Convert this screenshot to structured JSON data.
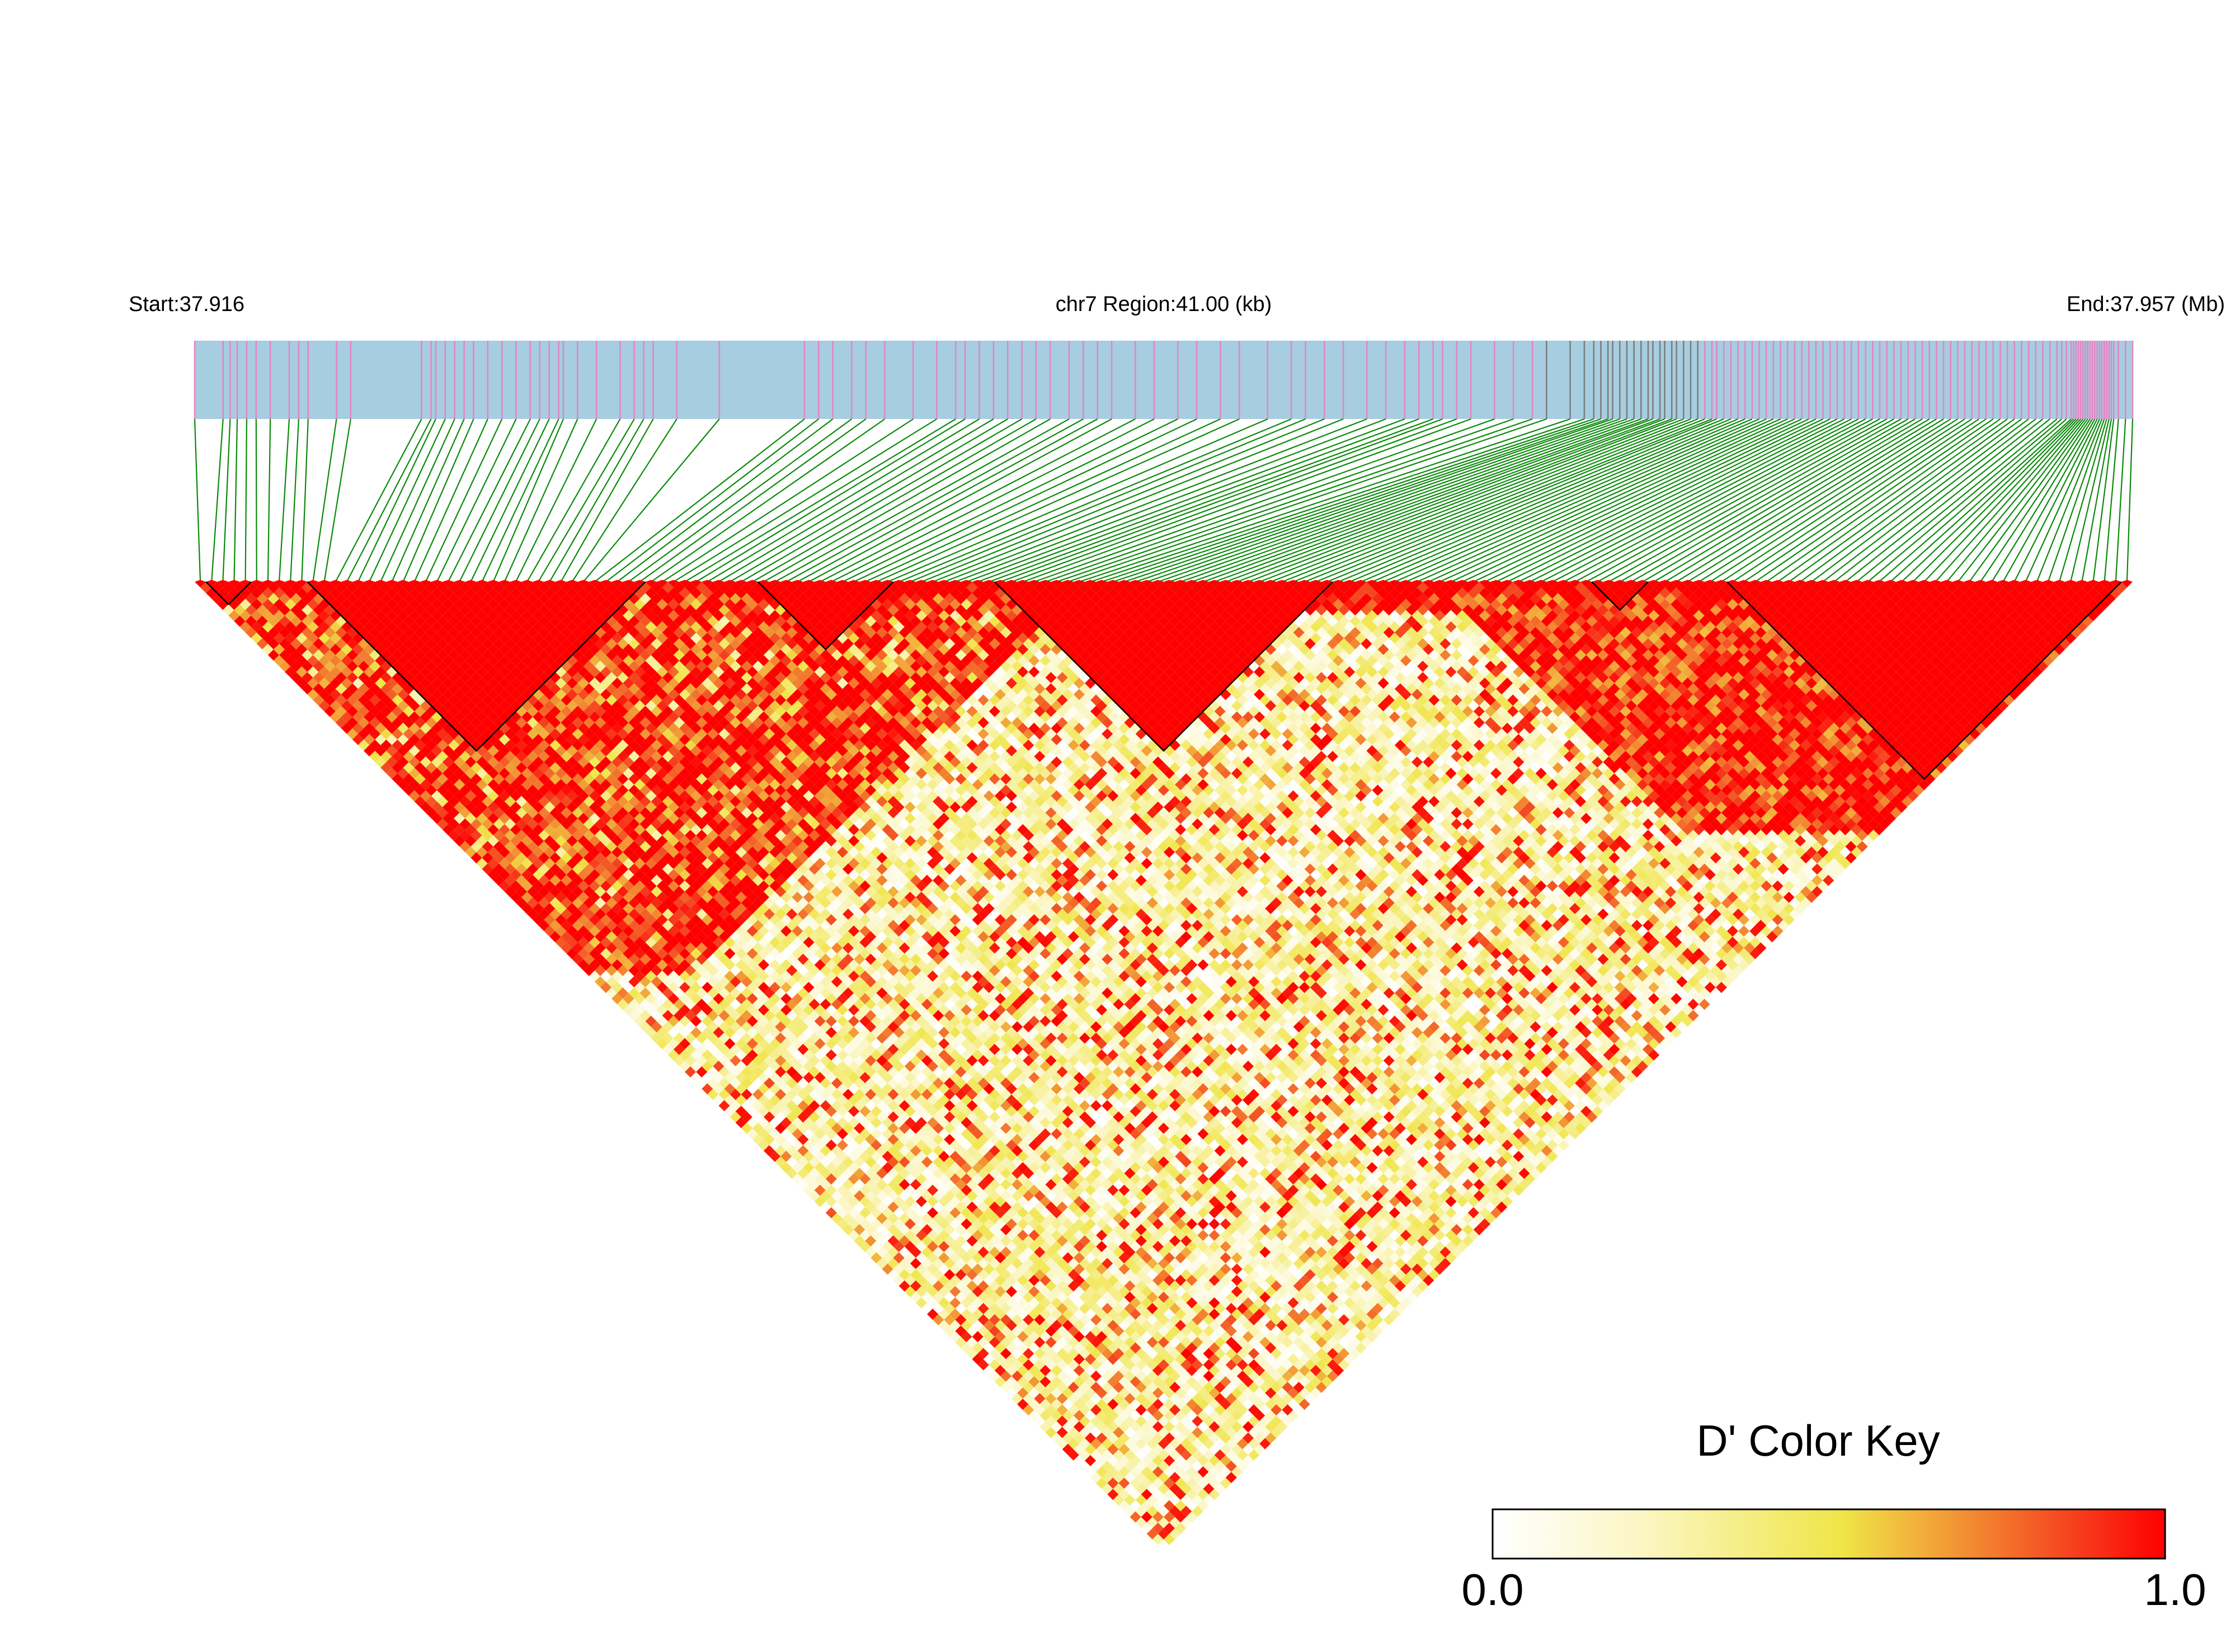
{
  "header": {
    "start_label": "Start:37.916",
    "region_label": "chr7 Region:41.00 (kb)",
    "end_label": "End:37.957 (Mb)"
  },
  "color_key": {
    "title": "D' Color Key",
    "min_label": "0.0",
    "max_label": "1.0",
    "stops": [
      "#ffffff",
      "#fbf6c4",
      "#f0e548",
      "#f29a36",
      "#f5421f",
      "#ff0000"
    ]
  },
  "colors": {
    "track": "#a7cde0",
    "snp_tick": "#e683c4",
    "snp_tick_dense": "#7b7b7b",
    "connector": "#0a8a0a",
    "block_outline": "#000000",
    "full_ld": "#ff0000"
  },
  "chart_data": {
    "type": "heatmap",
    "title": "",
    "chromosome": "chr7",
    "region_start_mb": 37.916,
    "region_end_mb": 37.957,
    "region_length_kb": 41.0,
    "snp_count": 172,
    "xlabel": "",
    "ylabel": "",
    "value_range": [
      0,
      1
    ],
    "snp_positions_kb": [
      0.0,
      0.6,
      0.75,
      0.9,
      1.1,
      1.3,
      1.6,
      2.0,
      2.2,
      2.4,
      3.0,
      3.3,
      4.8,
      5.0,
      5.1,
      5.3,
      5.5,
      5.7,
      5.9,
      6.2,
      6.5,
      6.8,
      7.1,
      7.3,
      7.5,
      7.7,
      7.8,
      8.1,
      8.5,
      9.0,
      9.3,
      9.5,
      9.7,
      10.2,
      11.1,
      12.9,
      13.2,
      13.5,
      13.9,
      14.2,
      14.6,
      15.2,
      15.7,
      16.1,
      16.3,
      16.6,
      16.9,
      17.2,
      17.5,
      17.8,
      18.1,
      18.5,
      18.8,
      19.1,
      19.4,
      19.9,
      20.3,
      20.8,
      21.2,
      21.7,
      22.1,
      22.7,
      23.2,
      23.5,
      23.9,
      24.3,
      24.8,
      25.2,
      25.6,
      25.9,
      26.2,
      26.4,
      26.7,
      27.0,
      27.5,
      27.9,
      28.3,
      28.6,
      29.1,
      29.4,
      29.6,
      29.75,
      29.9,
      30.0,
      30.15,
      30.3,
      30.45,
      30.6,
      30.75,
      30.85,
      31.0,
      31.1,
      31.25,
      31.35,
      31.5,
      31.65,
      31.8,
      31.95,
      32.1,
      32.2,
      32.35,
      32.5,
      32.65,
      32.8,
      32.95,
      33.1,
      33.25,
      33.4,
      33.55,
      33.7,
      33.85,
      34.0,
      34.15,
      34.3,
      34.45,
      34.6,
      34.75,
      34.9,
      35.05,
      35.2,
      35.35,
      35.5,
      35.65,
      35.8,
      35.95,
      36.1,
      36.25,
      36.4,
      36.55,
      36.7,
      36.85,
      37.0,
      37.15,
      37.3,
      37.45,
      37.6,
      37.75,
      37.9,
      38.05,
      38.2,
      38.35,
      38.5,
      38.65,
      38.8,
      38.95,
      39.1,
      39.25,
      39.4,
      39.5,
      39.6,
      39.7,
      39.75,
      39.8,
      39.85,
      39.9,
      39.95,
      40.0,
      40.05,
      40.1,
      40.15,
      40.2,
      40.25,
      40.3,
      40.35,
      40.4,
      40.45,
      40.5,
      40.55,
      40.6,
      40.7,
      40.85,
      41.0
    ],
    "haplotype_blocks": [
      [
        1,
        4
      ],
      [
        10,
        39
      ],
      [
        50,
        61
      ],
      [
        71,
        100
      ],
      [
        124,
        128
      ],
      [
        136,
        170
      ]
    ],
    "pattern_note": "Upper-triangle pairwise D' estimated visually; strong LD (1.0) inside outlined blocks, mixed red/orange near the diagonal, pale yellow/white for distant pairs in the centre."
  }
}
